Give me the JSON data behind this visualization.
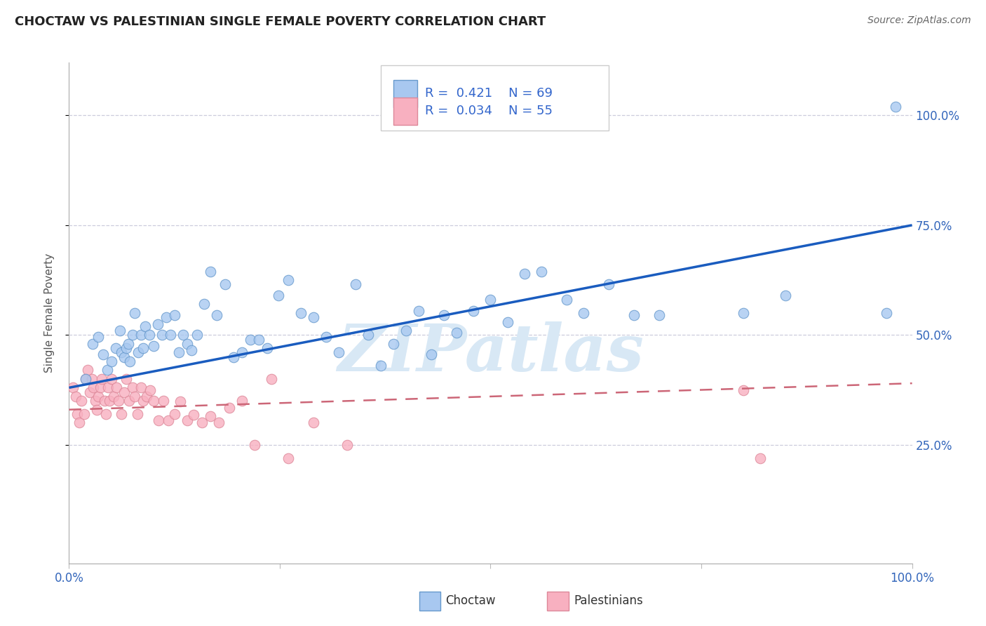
{
  "title": "CHOCTAW VS PALESTINIAN SINGLE FEMALE POVERTY CORRELATION CHART",
  "source": "Source: ZipAtlas.com",
  "ylabel": "Single Female Poverty",
  "choctaw_R": 0.421,
  "choctaw_N": 69,
  "palestinian_R": 0.034,
  "palestinian_N": 55,
  "choctaw_dot_color": "#a8c8f0",
  "choctaw_edge_color": "#6699cc",
  "choctaw_line_color": "#1a5cbf",
  "palestinian_dot_color": "#f8b0c0",
  "palestinian_edge_color": "#dd8899",
  "palestinian_line_color": "#cc6677",
  "watermark_color": "#d8e8f5",
  "grid_color": "#ccccdd",
  "xlim": [
    0.0,
    1.0
  ],
  "ylim": [
    -0.02,
    1.12
  ],
  "choctaw_x": [
    0.02,
    0.028,
    0.035,
    0.04,
    0.045,
    0.05,
    0.055,
    0.06,
    0.062,
    0.065,
    0.068,
    0.07,
    0.072,
    0.075,
    0.078,
    0.082,
    0.085,
    0.088,
    0.09,
    0.095,
    0.1,
    0.105,
    0.11,
    0.115,
    0.12,
    0.125,
    0.13,
    0.135,
    0.14,
    0.145,
    0.152,
    0.16,
    0.168,
    0.175,
    0.185,
    0.195,
    0.205,
    0.215,
    0.225,
    0.235,
    0.248,
    0.26,
    0.275,
    0.29,
    0.305,
    0.32,
    0.34,
    0.355,
    0.37,
    0.385,
    0.4,
    0.415,
    0.43,
    0.445,
    0.46,
    0.48,
    0.5,
    0.52,
    0.54,
    0.56,
    0.59,
    0.61,
    0.64,
    0.67,
    0.7,
    0.8,
    0.85,
    0.97,
    0.98
  ],
  "choctaw_y": [
    0.4,
    0.48,
    0.495,
    0.455,
    0.42,
    0.44,
    0.47,
    0.51,
    0.46,
    0.45,
    0.47,
    0.48,
    0.44,
    0.5,
    0.55,
    0.46,
    0.5,
    0.47,
    0.52,
    0.5,
    0.475,
    0.525,
    0.5,
    0.54,
    0.5,
    0.545,
    0.46,
    0.5,
    0.48,
    0.465,
    0.5,
    0.57,
    0.645,
    0.545,
    0.615,
    0.45,
    0.46,
    0.49,
    0.49,
    0.47,
    0.59,
    0.625,
    0.55,
    0.54,
    0.495,
    0.46,
    0.615,
    0.5,
    0.43,
    0.48,
    0.51,
    0.555,
    0.455,
    0.545,
    0.505,
    0.555,
    0.58,
    0.53,
    0.64,
    0.645,
    0.58,
    0.55,
    0.615,
    0.545,
    0.545,
    0.55,
    0.59,
    0.55,
    1.02
  ],
  "palestinian_x": [
    0.005,
    0.008,
    0.01,
    0.012,
    0.015,
    0.018,
    0.02,
    0.022,
    0.025,
    0.027,
    0.029,
    0.031,
    0.033,
    0.035,
    0.037,
    0.039,
    0.042,
    0.044,
    0.046,
    0.048,
    0.05,
    0.053,
    0.056,
    0.059,
    0.062,
    0.065,
    0.068,
    0.071,
    0.075,
    0.078,
    0.081,
    0.085,
    0.088,
    0.092,
    0.096,
    0.1,
    0.106,
    0.112,
    0.118,
    0.125,
    0.132,
    0.14,
    0.148,
    0.158,
    0.168,
    0.178,
    0.19,
    0.205,
    0.22,
    0.24,
    0.26,
    0.29,
    0.33,
    0.8,
    0.82
  ],
  "palestinian_y": [
    0.38,
    0.36,
    0.32,
    0.3,
    0.35,
    0.32,
    0.4,
    0.42,
    0.37,
    0.4,
    0.38,
    0.35,
    0.33,
    0.36,
    0.38,
    0.4,
    0.35,
    0.32,
    0.38,
    0.35,
    0.4,
    0.36,
    0.38,
    0.35,
    0.32,
    0.37,
    0.4,
    0.35,
    0.38,
    0.36,
    0.32,
    0.38,
    0.35,
    0.36,
    0.375,
    0.35,
    0.305,
    0.35,
    0.305,
    0.32,
    0.348,
    0.305,
    0.318,
    0.3,
    0.315,
    0.3,
    0.335,
    0.35,
    0.25,
    0.4,
    0.22,
    0.3,
    0.25,
    0.375,
    0.22
  ],
  "choctaw_trend": [
    0.38,
    0.75
  ],
  "palestinian_trend": [
    0.33,
    0.39
  ]
}
